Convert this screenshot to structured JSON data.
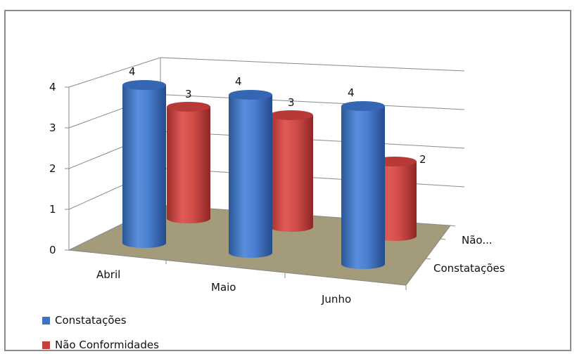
{
  "chart_data": {
    "type": "bar",
    "shape": "3d-cylinder",
    "categories": [
      "Abril",
      "Maio",
      "Junho"
    ],
    "series": [
      {
        "name": "Constatações",
        "values": [
          4,
          4,
          4
        ],
        "color": "#3d72c4"
      },
      {
        "name": "Não Conformidades",
        "values": [
          3,
          3,
          2
        ],
        "color": "#c8403d"
      }
    ],
    "depth_axis_labels": [
      "Constatações",
      "Não..."
    ],
    "ylim": [
      0,
      4
    ],
    "yticks": [
      "0",
      "1",
      "2",
      "3",
      "4"
    ],
    "grid": true,
    "legend_position": "bottom-left",
    "floor_color": "#a39b79"
  }
}
